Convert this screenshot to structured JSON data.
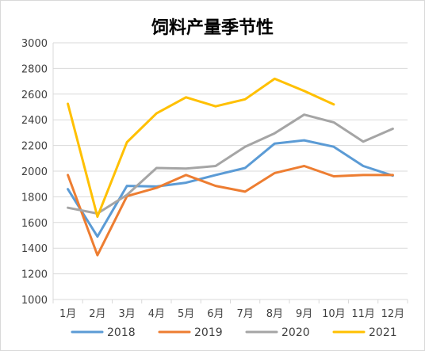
{
  "chart_data": {
    "type": "line",
    "title": "饲料产量季节性",
    "categories": [
      "1月",
      "2月",
      "3月",
      "4月",
      "5月",
      "6月",
      "7月",
      "8月",
      "9月",
      "10月",
      "11月",
      "12月"
    ],
    "ylim": [
      1000,
      3000
    ],
    "yticks": [
      1000,
      1200,
      1400,
      1600,
      1800,
      2000,
      2200,
      2400,
      2600,
      2800,
      3000
    ],
    "grid": "horizontal",
    "legend_position": "bottom",
    "series": [
      {
        "name": "2018",
        "color": "#5b9bd5",
        "values": [
          1860,
          1490,
          1885,
          1880,
          1910,
          1970,
          2025,
          2215,
          2240,
          2190,
          2040,
          1965
        ]
      },
      {
        "name": "2019",
        "color": "#ed7d31",
        "values": [
          1970,
          1345,
          1805,
          1870,
          1970,
          1885,
          1840,
          1985,
          2040,
          1960,
          1970,
          1970
        ]
      },
      {
        "name": "2020",
        "color": "#a5a5a5",
        "values": [
          1715,
          1670,
          1815,
          2025,
          2020,
          2040,
          2190,
          2295,
          2440,
          2380,
          2230,
          2330
        ]
      },
      {
        "name": "2021",
        "color": "#ffc000",
        "values": [
          2525,
          1645,
          2225,
          2450,
          2575,
          2505,
          2560,
          2720,
          2625,
          2520,
          null,
          null
        ]
      }
    ]
  }
}
